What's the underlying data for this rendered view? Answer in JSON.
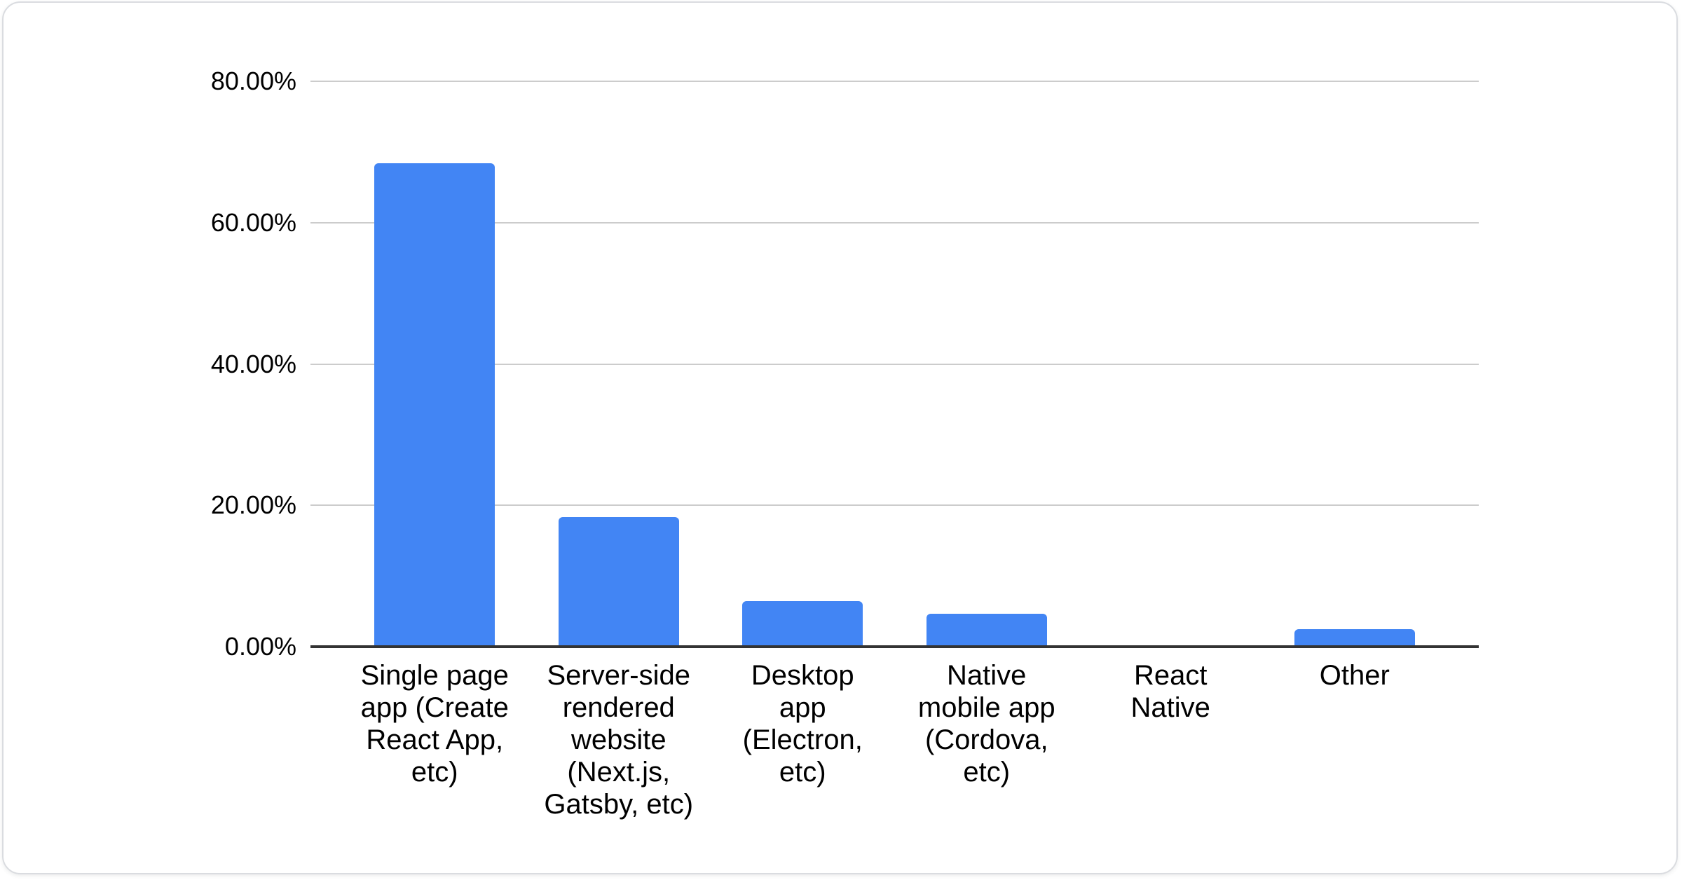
{
  "chart_data": {
    "type": "bar",
    "categories": [
      "Single page app (Create React App, etc)",
      "Server-side rendered website (Next.js, Gatsby, etc)",
      "Desktop app (Electron, etc)",
      "Native mobile app (Cordova, etc)",
      "React Native",
      "Other"
    ],
    "category_display_lines": [
      [
        "Single page",
        "app (Create",
        "React App,",
        "etc)"
      ],
      [
        "Server-side",
        "rendered",
        "website",
        "(Next.js,",
        "Gatsby, etc)"
      ],
      [
        "Desktop",
        "app",
        "(Electron,",
        "etc)"
      ],
      [
        "Native",
        "mobile app",
        "(Cordova,",
        "etc)"
      ],
      [
        "React",
        "Native"
      ],
      [
        "Other"
      ]
    ],
    "values": [
      68.4,
      18.3,
      6.4,
      4.7,
      0,
      2.5
    ],
    "unit": "%",
    "y_ticks": [
      "0.00%",
      "20.00%",
      "40.00%",
      "60.00%",
      "80.00%"
    ],
    "ylim": [
      0,
      80
    ],
    "grid": true,
    "legend": "none",
    "bar_color": "#4285f4",
    "gridline_color": "#cccccc",
    "axis_line_color": "#333333",
    "label_color": "#000000"
  },
  "card": {
    "background": "#ffffff",
    "border_color": "#dadce0"
  }
}
